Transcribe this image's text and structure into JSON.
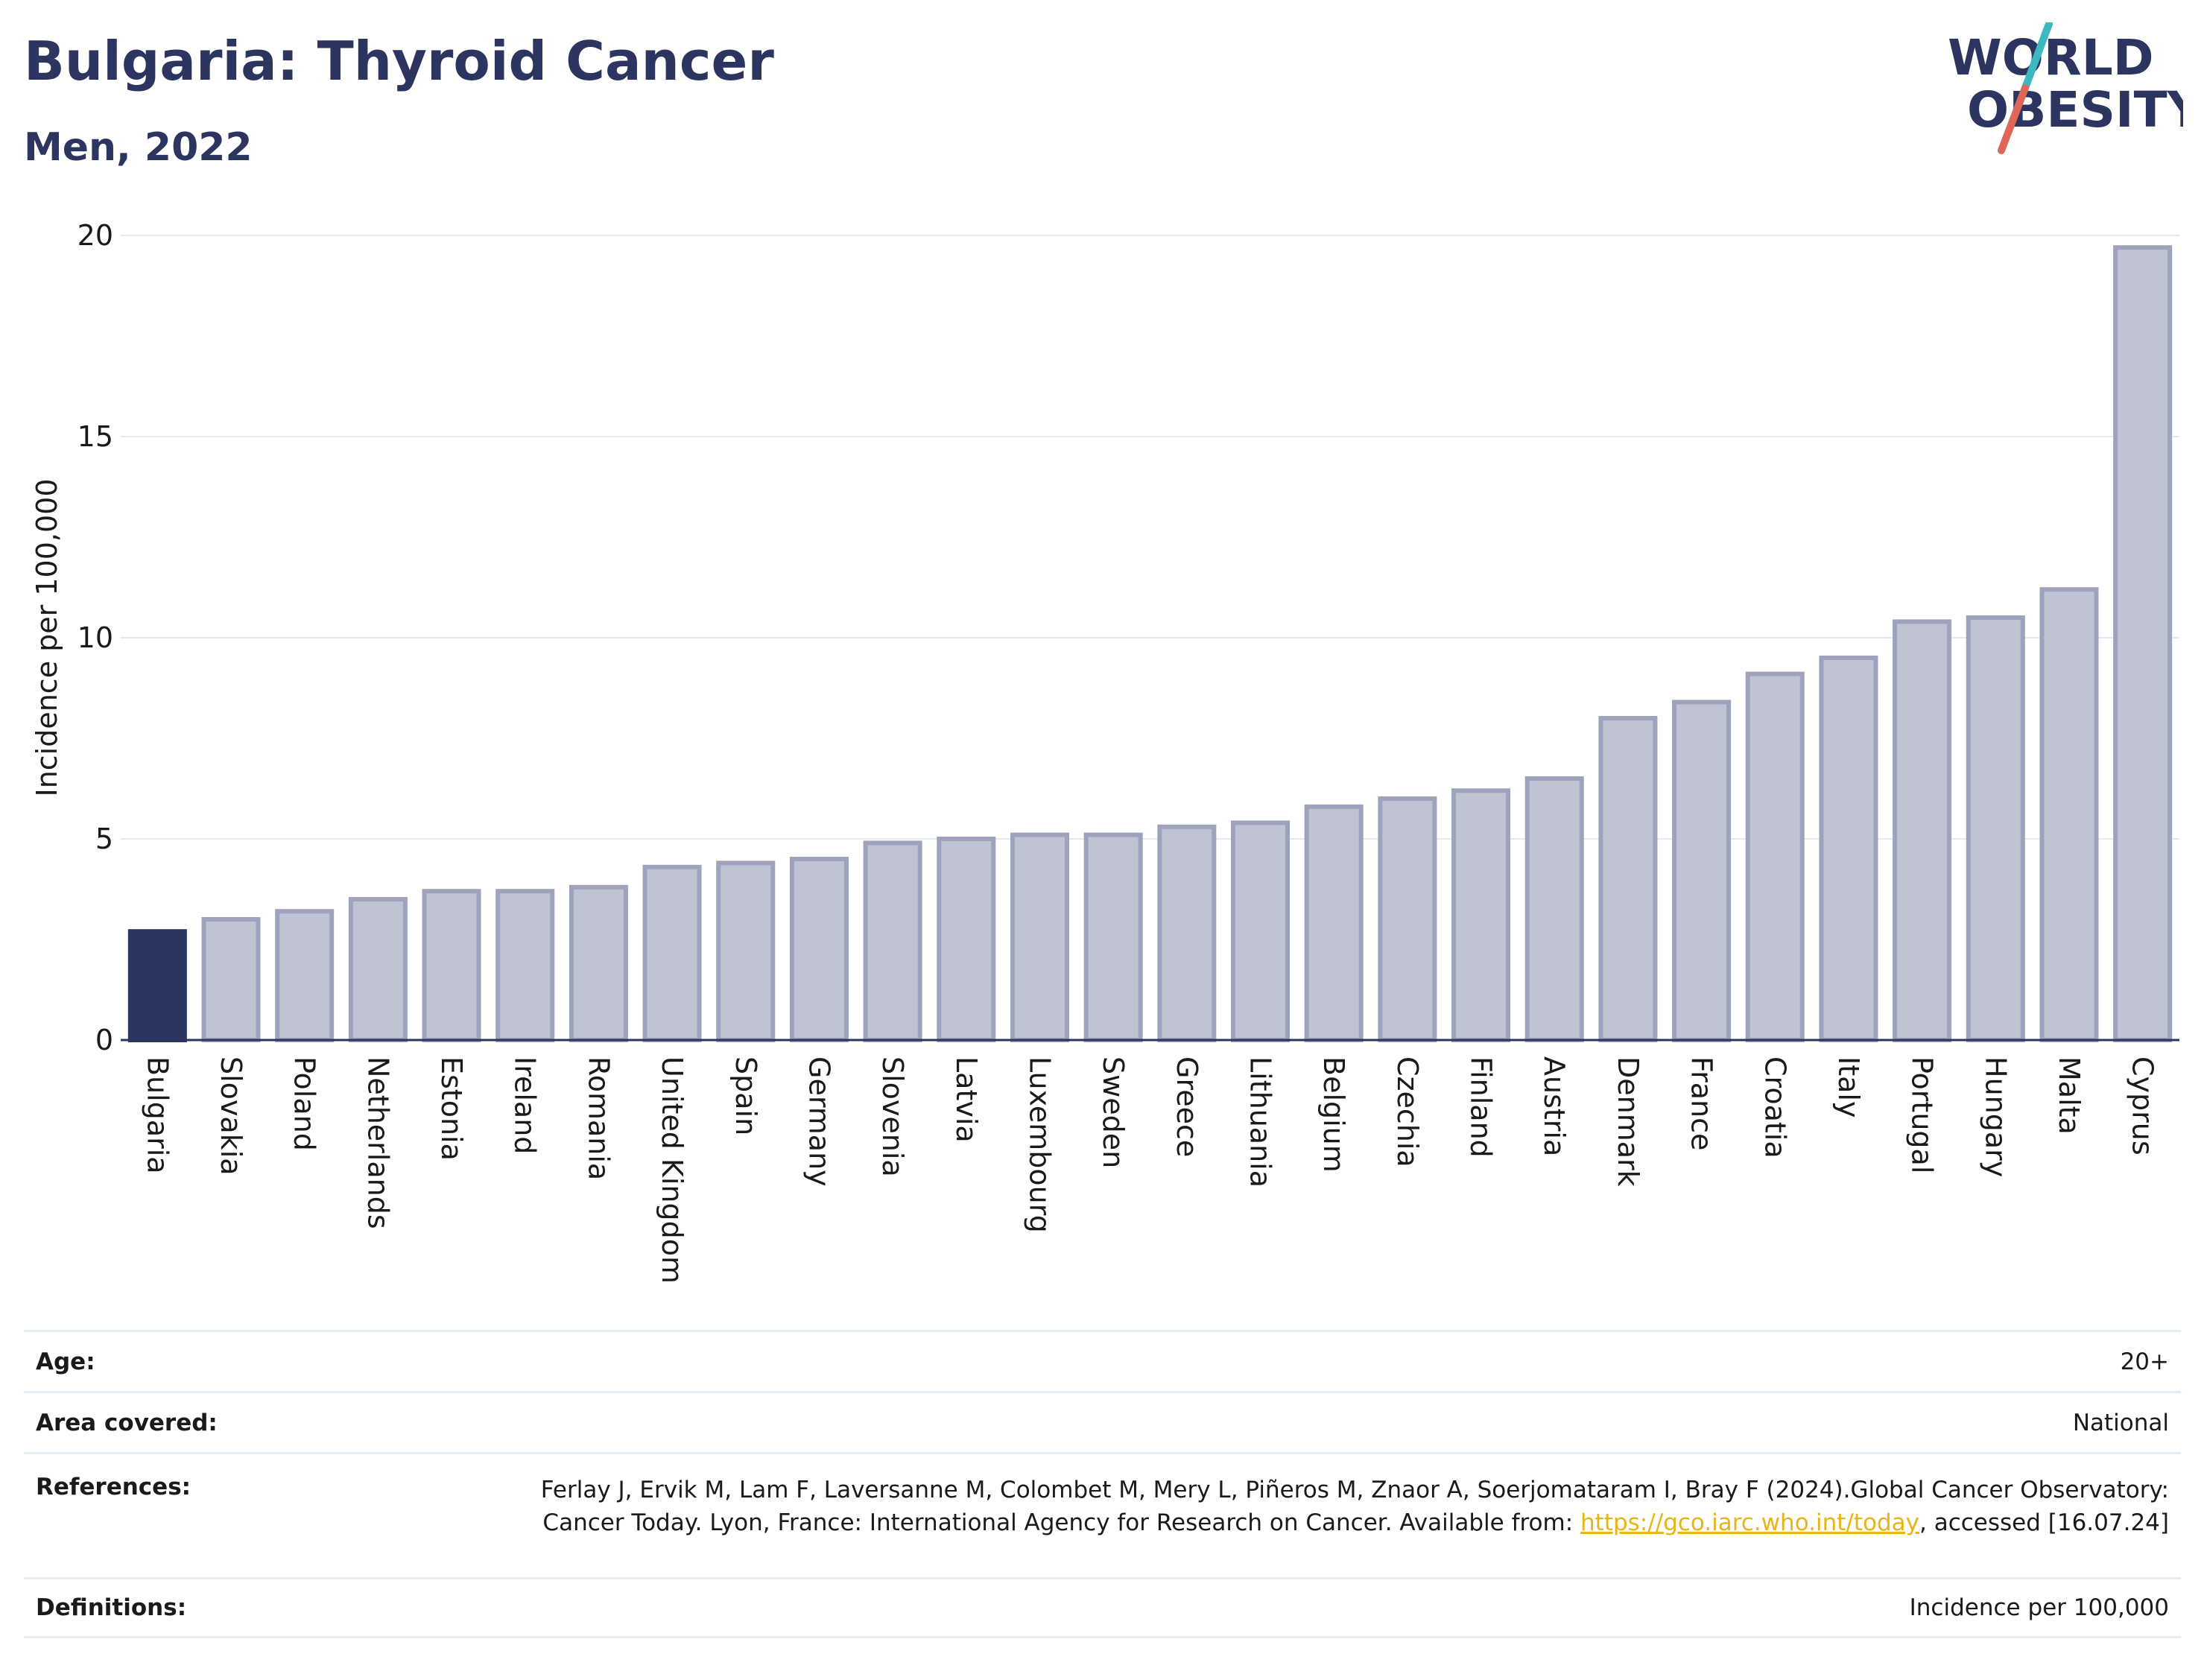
{
  "header": {
    "title": "Bulgaria: Thyroid Cancer",
    "subtitle": "Men, 2022"
  },
  "logo": {
    "line1": "WORLD",
    "line2": "OBESITY",
    "text_color": "#2b3560",
    "slash_colors": [
      "#3bb8c0",
      "#e0665a"
    ]
  },
  "chart_data": {
    "type": "bar",
    "ylabel": "Incidence per 100,000",
    "ylim": [
      0,
      20
    ],
    "yticks": [
      0,
      5,
      10,
      15,
      20
    ],
    "grid": true,
    "highlight": "Bulgaria",
    "colors": {
      "highlight": "#2b3560",
      "bar_fill": "#c0c4d2",
      "bar_stroke": "#9da3bc",
      "grid": "#e6eaf0",
      "axis": "#2b3560"
    },
    "categories": [
      "Bulgaria",
      "Slovakia",
      "Poland",
      "Netherlands",
      "Estonia",
      "Ireland",
      "Romania",
      "United Kingdom",
      "Spain",
      "Germany",
      "Slovenia",
      "Latvia",
      "Luxembourg",
      "Sweden",
      "Greece",
      "Lithuania",
      "Belgium",
      "Czechia",
      "Finland",
      "Austria",
      "Denmark",
      "France",
      "Croatia",
      "Italy",
      "Portugal",
      "Hungary",
      "Malta",
      "Cyprus"
    ],
    "values": [
      2.7,
      3.0,
      3.2,
      3.5,
      3.7,
      3.7,
      3.8,
      4.3,
      4.4,
      4.5,
      4.9,
      5.0,
      5.1,
      5.1,
      5.3,
      5.4,
      5.8,
      6.0,
      6.2,
      6.5,
      8.0,
      8.4,
      9.1,
      9.5,
      10.4,
      10.5,
      11.2,
      19.7
    ]
  },
  "meta": {
    "age_label": "Age:",
    "age_value": "20+",
    "area_label": "Area covered:",
    "area_value": "National",
    "references_label": "References:",
    "references_text_1": "Ferlay J, Ervik M, Lam F, Laversanne M, Colombet M, Mery L, Piñeros M, Znaor A, Soerjomataram I, Bray F (2024).Global Cancer Observatory: Cancer Today. Lyon, France: International Agency for Research on Cancer. Available from: ",
    "references_link": "https://gco.iarc.who.int/today",
    "references_text_2": ", accessed [16.07.24]",
    "definitions_label": "Definitions:",
    "definitions_value": "Incidence per 100,000"
  }
}
